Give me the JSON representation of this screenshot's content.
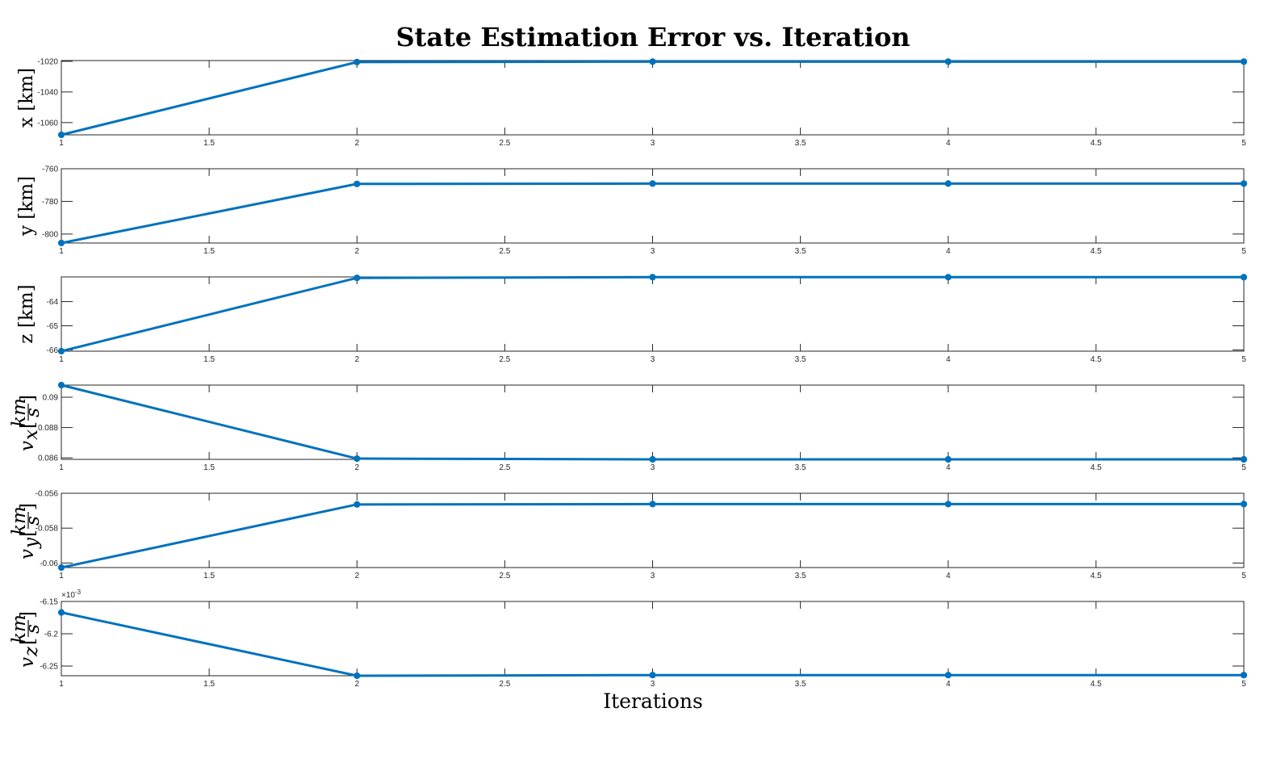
{
  "chart_data": {
    "type": "line",
    "title": "State Estimation Error vs. Iteration",
    "xlabel": "Iterations",
    "color": "#0072bd",
    "subplots": [
      {
        "name": "x",
        "ylabel": "x [km]",
        "x": [
          1,
          2,
          3,
          4,
          5
        ],
        "y": [
          -1068,
          -1020.5,
          -1020.2,
          -1020.2,
          -1020.2
        ],
        "xlim": [
          1,
          5
        ],
        "ylim": [
          -1068,
          -1019.5
        ],
        "xticks": [
          1,
          1.5,
          2,
          2.5,
          3,
          3.5,
          4,
          4.5,
          5
        ],
        "xtick_labels": [
          "1",
          "1.5",
          "2",
          "2.5",
          "3",
          "3.5",
          "4",
          "4.5",
          "5"
        ],
        "yticks": [
          -1060,
          -1040,
          -1020
        ],
        "ytick_labels": [
          "-1060",
          "-1040",
          "-1020"
        ]
      },
      {
        "name": "y",
        "ylabel": "y [km]",
        "x": [
          1,
          2,
          3,
          4,
          5
        ],
        "y": [
          -805.5,
          -769.3,
          -769.1,
          -769.1,
          -769.1
        ],
        "xlim": [
          1,
          5
        ],
        "ylim": [
          -805.5,
          -760
        ],
        "xticks": [
          1,
          1.5,
          2,
          2.5,
          3,
          3.5,
          4,
          4.5,
          5
        ],
        "xtick_labels": [
          "1",
          "1.5",
          "2",
          "2.5",
          "3",
          "3.5",
          "4",
          "4.5",
          "5"
        ],
        "yticks": [
          -800,
          -780,
          -760
        ],
        "ytick_labels": [
          "-800",
          "-780",
          "-760"
        ]
      },
      {
        "name": "z",
        "ylabel": "z [km]",
        "x": [
          1,
          2,
          3,
          4,
          5
        ],
        "y": [
          -66.05,
          -63.02,
          -62.99,
          -62.99,
          -62.99
        ],
        "xlim": [
          1,
          5
        ],
        "ylim": [
          -66.05,
          -62.98
        ],
        "xticks": [
          1,
          1.5,
          2,
          2.5,
          3,
          3.5,
          4,
          4.5,
          5
        ],
        "xtick_labels": [
          "1",
          "1.5",
          "2",
          "2.5",
          "3",
          "3.5",
          "4",
          "4.5",
          "5"
        ],
        "yticks": [
          -66,
          -65,
          -64
        ],
        "ytick_labels": [
          "-66",
          "-65",
          "-64"
        ]
      },
      {
        "name": "vx",
        "ylabel_var": "v",
        "ylabel_sub": "x",
        "ylabel_num": "km",
        "ylabel_den": "s",
        "x": [
          1,
          2,
          3,
          4,
          5
        ],
        "y": [
          0.0908,
          0.08595,
          0.0859,
          0.0859,
          0.0859
        ],
        "xlim": [
          1,
          5
        ],
        "ylim": [
          0.0859,
          0.0908
        ],
        "xticks": [
          1,
          1.5,
          2,
          2.5,
          3,
          3.5,
          4,
          4.5,
          5
        ],
        "xtick_labels": [
          "1",
          "1.5",
          "2",
          "2.5",
          "3",
          "3.5",
          "4",
          "4.5",
          "5"
        ],
        "yticks": [
          0.086,
          0.088,
          0.09
        ],
        "ytick_labels": [
          "0.086",
          "0.088",
          "0.09"
        ]
      },
      {
        "name": "vy",
        "ylabel_var": "v",
        "ylabel_sub": "y",
        "ylabel_num": "km",
        "ylabel_den": "s",
        "x": [
          1,
          2,
          3,
          4,
          5
        ],
        "y": [
          -0.06026,
          -0.05664,
          -0.05662,
          -0.05662,
          -0.05662
        ],
        "xlim": [
          1,
          5
        ],
        "ylim": [
          -0.06026,
          -0.056
        ],
        "xticks": [
          1,
          1.5,
          2,
          2.5,
          3,
          3.5,
          4,
          4.5,
          5
        ],
        "xtick_labels": [
          "1",
          "1.5",
          "2",
          "2.5",
          "3",
          "3.5",
          "4",
          "4.5",
          "5"
        ],
        "yticks": [
          -0.06,
          -0.058,
          -0.056
        ],
        "ytick_labels": [
          "-0.06",
          "-0.058",
          "-0.056"
        ]
      },
      {
        "name": "vz",
        "ylabel_var": "v",
        "ylabel_sub": "z",
        "ylabel_num": "km",
        "ylabel_den": "s",
        "x": [
          1,
          2,
          3,
          4,
          5
        ],
        "y": [
          -0.006167,
          -0.006265,
          -0.006264,
          -0.006264,
          -0.006264
        ],
        "xlim": [
          1,
          5
        ],
        "ylim": [
          -0.006265,
          -0.00615
        ],
        "xticks": [
          1,
          1.5,
          2,
          2.5,
          3,
          3.5,
          4,
          4.5,
          5
        ],
        "xtick_labels": [
          "1",
          "1.5",
          "2",
          "2.5",
          "3",
          "3.5",
          "4",
          "4.5",
          "5"
        ],
        "yticks": [
          -0.00625,
          -0.0062,
          -0.00615
        ],
        "ytick_labels": [
          "-6.25",
          "-6.2",
          "-6.15"
        ],
        "multiplier_base": "×10",
        "multiplier_exp": "-3"
      }
    ]
  }
}
